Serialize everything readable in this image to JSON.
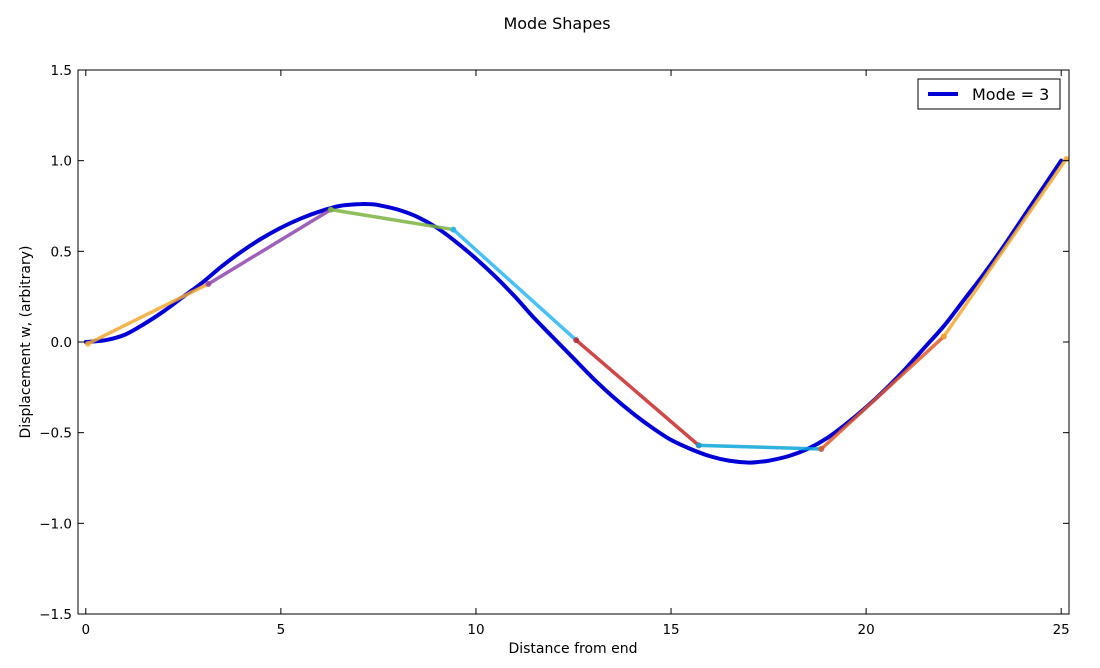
{
  "chart_data": {
    "type": "line",
    "title": "Mode Shapes",
    "xlabel": "Distance from end",
    "ylabel": "Displacement w, (arbitrary)",
    "xlim": [
      -0.2,
      25.2
    ],
    "ylim": [
      -1.5,
      1.5
    ],
    "xticks": [
      "0",
      "5",
      "10",
      "15",
      "20",
      "25"
    ],
    "xtick_values": [
      0,
      5,
      10,
      15,
      20,
      25
    ],
    "yticks": [
      "1.5",
      "1.0",
      "0.5",
      "0.0",
      "−0.5",
      "−1.0",
      "−1.5"
    ],
    "ytick_values": [
      1.5,
      1.0,
      0.5,
      0.0,
      -0.5,
      -1.0,
      -1.5
    ],
    "grid": false,
    "legend": {
      "position": "top-right",
      "entries": [
        "Mode = 3"
      ]
    },
    "series": [
      {
        "name": "Mode = 3",
        "color": "#0000d6",
        "x": [
          0,
          0.5,
          1,
          1.5,
          2,
          2.5,
          3,
          3.5,
          4,
          4.5,
          5,
          5.5,
          6,
          6.5,
          7,
          7.3,
          7.5,
          8,
          8.5,
          9,
          9.5,
          10,
          10.5,
          11,
          11.5,
          12,
          12.5,
          13,
          13.5,
          14,
          14.5,
          15,
          15.5,
          16,
          16.5,
          17,
          17.3,
          17.5,
          18,
          18.5,
          19,
          19.5,
          20,
          20.5,
          21,
          21.5,
          22,
          22.5,
          23,
          23.5,
          24,
          24.5,
          25
        ],
        "values": [
          0.0,
          0.01,
          0.04,
          0.1,
          0.17,
          0.25,
          0.33,
          0.42,
          0.5,
          0.57,
          0.63,
          0.68,
          0.72,
          0.75,
          0.76,
          0.76,
          0.755,
          0.73,
          0.69,
          0.63,
          0.55,
          0.46,
          0.36,
          0.25,
          0.13,
          0.02,
          -0.09,
          -0.2,
          -0.3,
          -0.39,
          -0.47,
          -0.54,
          -0.59,
          -0.63,
          -0.655,
          -0.665,
          -0.66,
          -0.655,
          -0.63,
          -0.59,
          -0.53,
          -0.45,
          -0.36,
          -0.26,
          -0.15,
          -0.03,
          0.09,
          0.23,
          0.37,
          0.52,
          0.68,
          0.84,
          1.0
        ]
      }
    ],
    "segments": [
      {
        "color": "#f0a830",
        "x": [
          0.05,
          3.14
        ],
        "values": [
          -0.01,
          0.32
        ]
      },
      {
        "color": "#8e44ad",
        "x": [
          3.14,
          6.28
        ],
        "values": [
          0.32,
          0.73
        ]
      },
      {
        "color": "#7cb342",
        "x": [
          6.28,
          9.42
        ],
        "values": [
          0.73,
          0.62
        ]
      },
      {
        "color": "#29b6f6",
        "x": [
          9.42,
          12.57
        ],
        "values": [
          0.62,
          0.01
        ]
      },
      {
        "color": "#c62828",
        "x": [
          12.57,
          15.71
        ],
        "values": [
          0.01,
          -0.57
        ]
      },
      {
        "color": "#0aa6d8",
        "x": [
          15.71,
          18.85
        ],
        "values": [
          -0.57,
          -0.59
        ]
      },
      {
        "color": "#e05a2b",
        "x": [
          18.85,
          21.99
        ],
        "values": [
          -0.59,
          0.03
        ]
      },
      {
        "color": "#f0a830",
        "x": [
          21.99,
          25.13
        ],
        "values": [
          0.03,
          1.01
        ]
      }
    ]
  }
}
